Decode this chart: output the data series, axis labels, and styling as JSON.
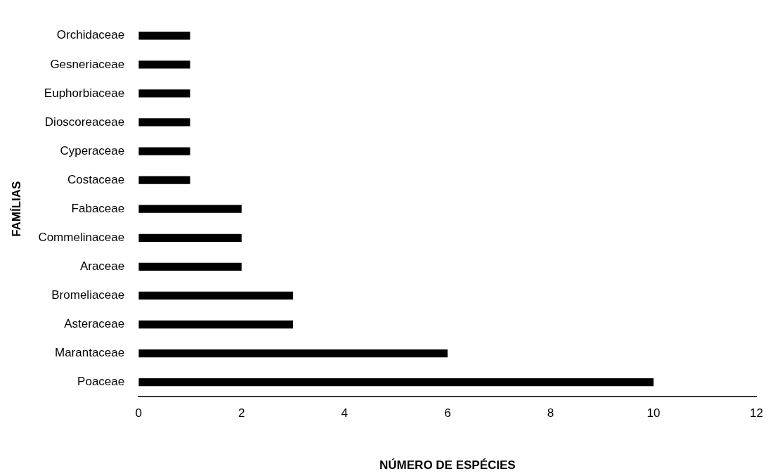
{
  "chart_data": {
    "type": "bar",
    "orientation": "horizontal",
    "xlabel": "NÚMERO DE ESPÉCIES",
    "ylabel": "FAMÍLIAS",
    "categories": [
      "Orchidaceae",
      "Gesneriaceae",
      "Euphorbiaceae",
      "Dioscoreaceae",
      "Cyperaceae",
      "Costaceae",
      "Fabaceae",
      "Commelinaceae",
      "Araceae",
      "Bromeliaceae",
      "Asteraceae",
      "Marantaceae",
      "Poaceae"
    ],
    "values": [
      1,
      1,
      1,
      1,
      1,
      1,
      2,
      2,
      2,
      3,
      3,
      6,
      10
    ],
    "color": "#000000",
    "xlim": [
      0,
      12
    ],
    "xticks": [
      0,
      2,
      4,
      6,
      8,
      10,
      12
    ],
    "grid": false,
    "legend": false
  }
}
